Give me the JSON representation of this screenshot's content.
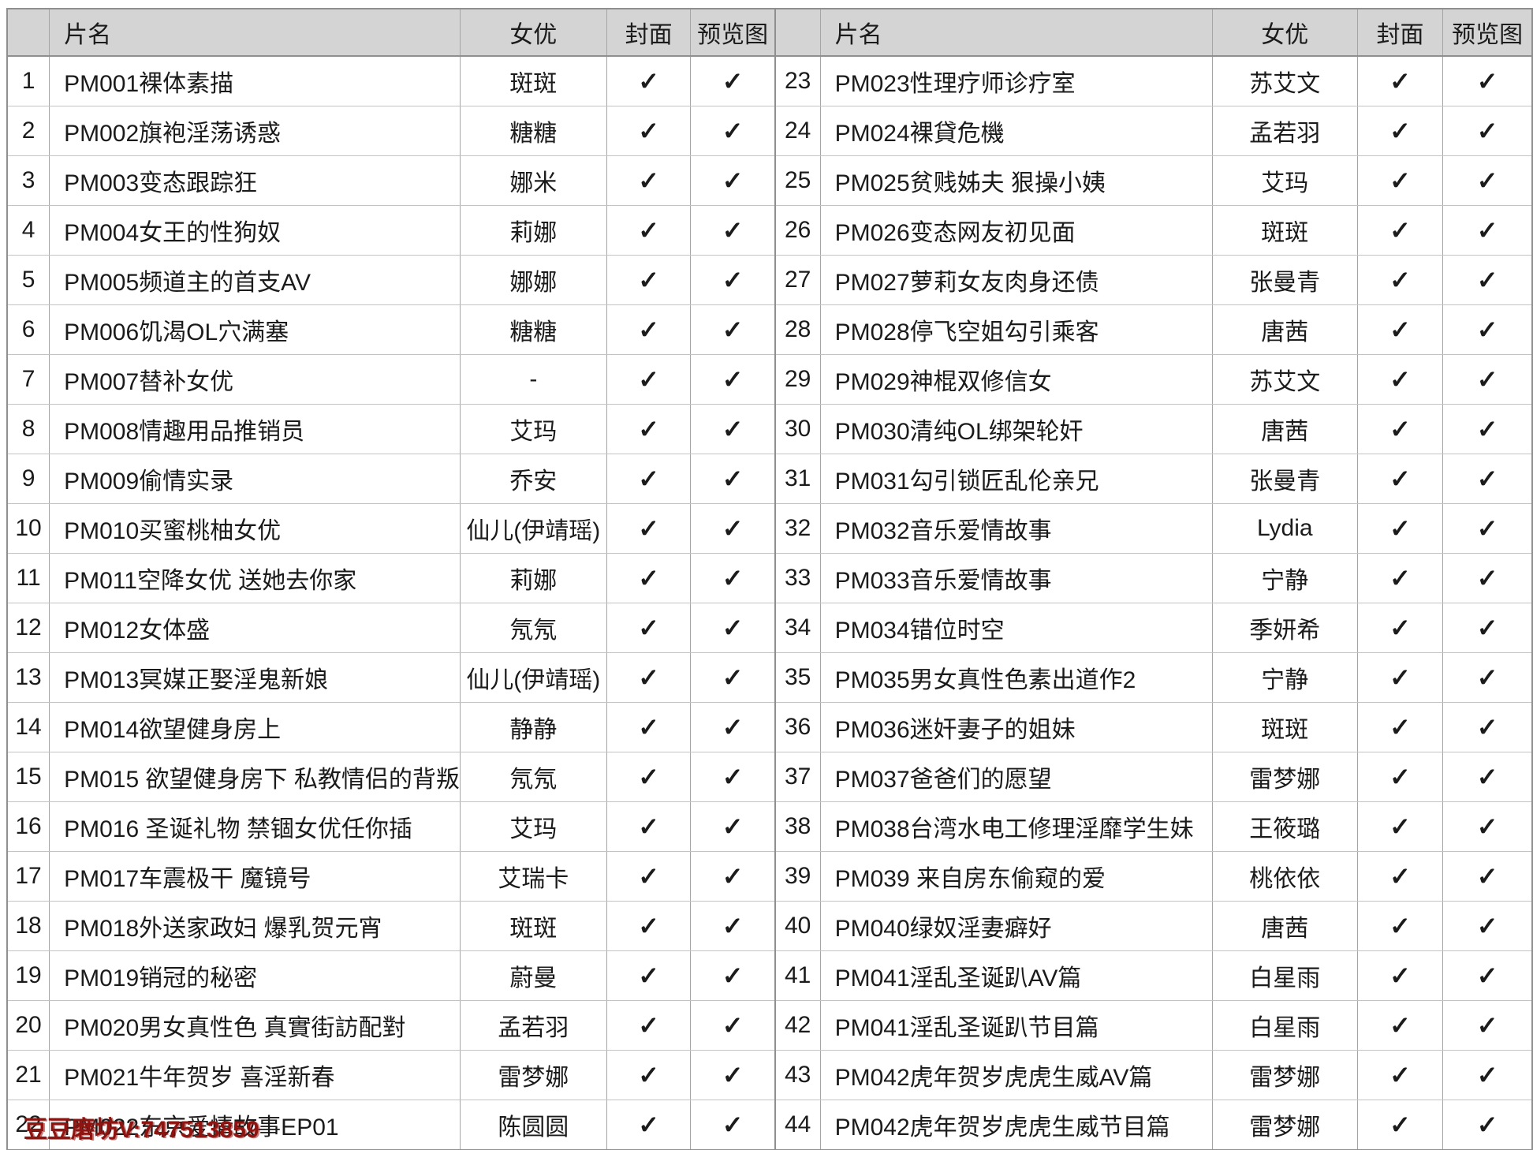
{
  "columns": {
    "index": "",
    "title": "片名",
    "actress": "女优",
    "cover": "封面",
    "preview": "预览图"
  },
  "check_glyph": "✓",
  "colors": {
    "header_bg": "#d4d4d4",
    "outer_border": "#8f8f8f",
    "vertical_border": "#a5a5a5",
    "horizontal_border": "#c3c3c3",
    "text": "#1b1b1b",
    "watermark": "#8f1410"
  },
  "watermark": {
    "text": "豆豆磨坊V:747513859"
  },
  "tables": [
    {
      "side": "left",
      "rows": [
        {
          "no": "1",
          "title": "PM001裸体素描",
          "actress": "斑斑",
          "cover": "✓",
          "preview": "✓"
        },
        {
          "no": "2",
          "title": "PM002旗袍淫荡诱惑",
          "actress": "糖糖",
          "cover": "✓",
          "preview": "✓"
        },
        {
          "no": "3",
          "title": "PM003变态跟踪狂",
          "actress": "娜米",
          "cover": "✓",
          "preview": "✓"
        },
        {
          "no": "4",
          "title": "PM004女王的性狗奴",
          "actress": "莉娜",
          "cover": "✓",
          "preview": "✓"
        },
        {
          "no": "5",
          "title": "PM005频道主的首支AV",
          "actress": "娜娜",
          "cover": "✓",
          "preview": "✓"
        },
        {
          "no": "6",
          "title": "PM006饥渴OL穴满塞",
          "actress": "糖糖",
          "cover": "✓",
          "preview": "✓"
        },
        {
          "no": "7",
          "title": "PM007替补女优",
          "actress": "-",
          "cover": "✓",
          "preview": "✓"
        },
        {
          "no": "8",
          "title": "PM008情趣用品推销员",
          "actress": "艾玛",
          "cover": "✓",
          "preview": "✓"
        },
        {
          "no": "9",
          "title": "PM009偷情实录",
          "actress": "乔安",
          "cover": "✓",
          "preview": "✓"
        },
        {
          "no": "10",
          "title": "PM010买蜜桃柚女优",
          "actress": "仙儿(伊靖瑶)",
          "cover": "✓",
          "preview": "✓"
        },
        {
          "no": "11",
          "title": "PM011空降女优 送她去你家",
          "actress": "莉娜",
          "cover": "✓",
          "preview": "✓"
        },
        {
          "no": "12",
          "title": "PM012女体盛",
          "actress": "氖氖",
          "cover": "✓",
          "preview": "✓"
        },
        {
          "no": "13",
          "title": "PM013冥媒正娶淫鬼新娘",
          "actress": "仙儿(伊靖瑶)",
          "cover": "✓",
          "preview": "✓"
        },
        {
          "no": "14",
          "title": "PM014欲望健身房上",
          "actress": "静静",
          "cover": "✓",
          "preview": "✓"
        },
        {
          "no": "15",
          "title": "PM015 欲望健身房下 私教情侣的背叛",
          "actress": "氖氖",
          "cover": "✓",
          "preview": "✓"
        },
        {
          "no": "16",
          "title": "PM016 圣诞礼物 禁锢女优任你插",
          "actress": "艾玛",
          "cover": "✓",
          "preview": "✓"
        },
        {
          "no": "17",
          "title": "PM017车震极干 魔镜号",
          "actress": "艾瑞卡",
          "cover": "✓",
          "preview": "✓"
        },
        {
          "no": "18",
          "title": "PM018外送家政妇 爆乳贺元宵",
          "actress": "斑斑",
          "cover": "✓",
          "preview": "✓"
        },
        {
          "no": "19",
          "title": "PM019销冠的秘密",
          "actress": "蔚曼",
          "cover": "✓",
          "preview": "✓"
        },
        {
          "no": "20",
          "title": "PM020男女真性色 真實街訪配對",
          "actress": "孟若羽",
          "cover": "✓",
          "preview": "✓"
        },
        {
          "no": "21",
          "title": "PM021牛年贺岁 喜淫新春",
          "actress": "雷梦娜",
          "cover": "✓",
          "preview": "✓"
        },
        {
          "no": "22",
          "title": "PM022东京爱情故事EP01",
          "actress": "陈圆圆",
          "cover": "✓",
          "preview": "✓"
        }
      ]
    },
    {
      "side": "right",
      "rows": [
        {
          "no": "23",
          "title": "PM023性理疗师诊疗室",
          "actress": "苏艾文",
          "cover": "✓",
          "preview": "✓"
        },
        {
          "no": "24",
          "title": "PM024裸貸危機",
          "actress": "孟若羽",
          "cover": "✓",
          "preview": "✓"
        },
        {
          "no": "25",
          "title": "PM025贫贱姊夫 狠操小姨",
          "actress": "艾玛",
          "cover": "✓",
          "preview": "✓"
        },
        {
          "no": "26",
          "title": "PM026变态网友初见面",
          "actress": "斑斑",
          "cover": "✓",
          "preview": "✓"
        },
        {
          "no": "27",
          "title": "PM027萝莉女友肉身还债",
          "actress": "张曼青",
          "cover": "✓",
          "preview": "✓"
        },
        {
          "no": "28",
          "title": "PM028停飞空姐勾引乘客",
          "actress": "唐茜",
          "cover": "✓",
          "preview": "✓"
        },
        {
          "no": "29",
          "title": "PM029神棍双修信女",
          "actress": "苏艾文",
          "cover": "✓",
          "preview": "✓"
        },
        {
          "no": "30",
          "title": "PM030清纯OL绑架轮奸",
          "actress": "唐茜",
          "cover": "✓",
          "preview": "✓"
        },
        {
          "no": "31",
          "title": "PM031勾引锁匠乱伦亲兄",
          "actress": "张曼青",
          "cover": "✓",
          "preview": "✓"
        },
        {
          "no": "32",
          "title": "PM032音乐爱情故事",
          "actress": "Lydia",
          "cover": "✓",
          "preview": "✓"
        },
        {
          "no": "33",
          "title": "PM033音乐爱情故事",
          "actress": "宁静",
          "cover": "✓",
          "preview": "✓"
        },
        {
          "no": "34",
          "title": "PM034错位时空",
          "actress": "季妍希",
          "cover": "✓",
          "preview": "✓"
        },
        {
          "no": "35",
          "title": "PM035男女真性色素出道作2",
          "actress": "宁静",
          "cover": "✓",
          "preview": "✓"
        },
        {
          "no": "36",
          "title": "PM036迷奸妻子的姐妹",
          "actress": "斑斑",
          "cover": "✓",
          "preview": "✓"
        },
        {
          "no": "37",
          "title": "PM037爸爸们的愿望",
          "actress": "雷梦娜",
          "cover": "✓",
          "preview": "✓"
        },
        {
          "no": "38",
          "title": "PM038台湾水电工修理淫靡学生妹",
          "actress": "王筱璐",
          "cover": "✓",
          "preview": "✓"
        },
        {
          "no": "39",
          "title": "PM039 来自房东偷窥的爱",
          "actress": "桃依依",
          "cover": "✓",
          "preview": "✓"
        },
        {
          "no": "40",
          "title": "PM040绿奴淫妻癖好",
          "actress": "唐茜",
          "cover": "✓",
          "preview": "✓"
        },
        {
          "no": "41",
          "title": "PM041淫乱圣诞趴AV篇",
          "actress": "白星雨",
          "cover": "✓",
          "preview": "✓"
        },
        {
          "no": "42",
          "title": "PM041淫乱圣诞趴节目篇",
          "actress": "白星雨",
          "cover": "✓",
          "preview": "✓"
        },
        {
          "no": "43",
          "title": "PM042虎年贺岁虎虎生威AV篇",
          "actress": "雷梦娜",
          "cover": "✓",
          "preview": "✓"
        },
        {
          "no": "44",
          "title": "PM042虎年贺岁虎虎生威节目篇",
          "actress": "雷梦娜",
          "cover": "✓",
          "preview": "✓"
        }
      ]
    }
  ]
}
